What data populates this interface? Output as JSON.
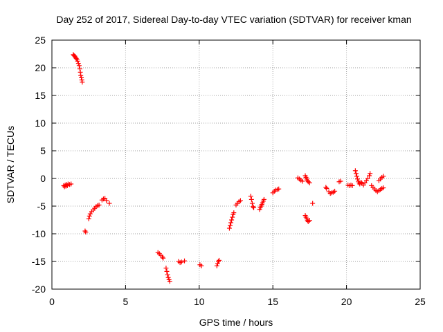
{
  "chart_data": {
    "type": "scatter",
    "title": "Day 252 of 2017, Sidereal Day-to-day VTEC variation (SDTVAR) for receiver kman",
    "xlabel": "GPS time / hours",
    "ylabel": "SDTVAR / TECUs",
    "xlim": [
      0,
      25
    ],
    "ylim": [
      -20,
      25
    ],
    "xticks": [
      0,
      5,
      10,
      15,
      20,
      25
    ],
    "yticks": [
      -20,
      -15,
      -10,
      -5,
      0,
      5,
      10,
      15,
      20,
      25
    ],
    "xtick_labels": [
      "0",
      "5",
      "10",
      "15",
      "20",
      "25"
    ],
    "ytick_labels": [
      "-20",
      "-15",
      "-10",
      "-5",
      "0",
      "5",
      "10",
      "15",
      "20",
      "25"
    ],
    "grid": true,
    "marker": "+",
    "color": "#ff0000",
    "series": [
      {
        "name": "kman",
        "points": [
          [
            0.8,
            -1.3
          ],
          [
            0.85,
            -1.5
          ],
          [
            0.9,
            -1.2
          ],
          [
            0.95,
            -1.4
          ],
          [
            1.0,
            -1.1
          ],
          [
            1.05,
            -1.3
          ],
          [
            1.1,
            -1.0
          ],
          [
            1.2,
            -1.1
          ],
          [
            1.3,
            -1.0
          ],
          [
            1.45,
            22.4
          ],
          [
            1.5,
            22.2
          ],
          [
            1.55,
            22.1
          ],
          [
            1.6,
            21.9
          ],
          [
            1.65,
            21.7
          ],
          [
            1.7,
            21.5
          ],
          [
            1.75,
            21.2
          ],
          [
            1.8,
            20.8
          ],
          [
            1.85,
            20.4
          ],
          [
            1.9,
            19.8
          ],
          [
            1.93,
            19.2
          ],
          [
            1.96,
            18.6
          ],
          [
            2.0,
            18.2
          ],
          [
            2.03,
            17.8
          ],
          [
            2.06,
            17.4
          ],
          [
            2.25,
            -9.5
          ],
          [
            2.3,
            -9.7
          ],
          [
            2.5,
            -7.3
          ],
          [
            2.55,
            -6.8
          ],
          [
            2.6,
            -6.4
          ],
          [
            2.7,
            -6.0
          ],
          [
            2.8,
            -5.7
          ],
          [
            2.9,
            -5.4
          ],
          [
            3.0,
            -5.1
          ],
          [
            3.1,
            -4.9
          ],
          [
            3.2,
            -4.8
          ],
          [
            3.4,
            -3.9
          ],
          [
            3.5,
            -3.7
          ],
          [
            3.6,
            -3.6
          ],
          [
            3.7,
            -4.0
          ],
          [
            3.9,
            -4.5
          ],
          [
            7.2,
            -13.4
          ],
          [
            7.3,
            -13.6
          ],
          [
            7.4,
            -13.9
          ],
          [
            7.5,
            -14.2
          ],
          [
            7.55,
            -14.4
          ],
          [
            7.75,
            -16.2
          ],
          [
            7.8,
            -16.8
          ],
          [
            7.85,
            -17.4
          ],
          [
            7.9,
            -17.9
          ],
          [
            7.95,
            -18.3
          ],
          [
            8.0,
            -18.6
          ],
          [
            8.6,
            -15.0
          ],
          [
            8.7,
            -15.2
          ],
          [
            8.8,
            -15.1
          ],
          [
            9.0,
            -14.9
          ],
          [
            10.05,
            -15.6
          ],
          [
            10.15,
            -15.8
          ],
          [
            11.2,
            -15.8
          ],
          [
            11.25,
            -15.4
          ],
          [
            11.3,
            -15.0
          ],
          [
            11.35,
            -14.8
          ],
          [
            12.05,
            -9.0
          ],
          [
            12.1,
            -8.5
          ],
          [
            12.15,
            -8.0
          ],
          [
            12.2,
            -7.5
          ],
          [
            12.25,
            -7.0
          ],
          [
            12.3,
            -6.5
          ],
          [
            12.35,
            -6.2
          ],
          [
            12.5,
            -4.8
          ],
          [
            12.6,
            -4.5
          ],
          [
            12.7,
            -4.2
          ],
          [
            12.8,
            -4.0
          ],
          [
            13.5,
            -3.2
          ],
          [
            13.55,
            -3.8
          ],
          [
            13.6,
            -4.5
          ],
          [
            13.65,
            -5.1
          ],
          [
            13.7,
            -5.3
          ],
          [
            14.1,
            -5.6
          ],
          [
            14.15,
            -5.3
          ],
          [
            14.2,
            -5.0
          ],
          [
            14.25,
            -4.7
          ],
          [
            14.3,
            -4.4
          ],
          [
            14.35,
            -4.1
          ],
          [
            14.4,
            -3.8
          ],
          [
            15.0,
            -2.6
          ],
          [
            15.1,
            -2.3
          ],
          [
            15.2,
            -2.1
          ],
          [
            15.3,
            -2.0
          ],
          [
            15.4,
            -1.9
          ],
          [
            16.7,
            0.1
          ],
          [
            16.8,
            -0.1
          ],
          [
            16.9,
            -0.3
          ],
          [
            17.0,
            -0.5
          ],
          [
            17.2,
            0.5
          ],
          [
            17.25,
            0.2
          ],
          [
            17.3,
            -0.1
          ],
          [
            17.35,
            -0.4
          ],
          [
            17.4,
            -0.6
          ],
          [
            17.5,
            -0.8
          ],
          [
            17.2,
            -6.7
          ],
          [
            17.25,
            -7.0
          ],
          [
            17.3,
            -7.3
          ],
          [
            17.35,
            -7.6
          ],
          [
            17.4,
            -7.8
          ],
          [
            17.5,
            -7.6
          ],
          [
            17.7,
            -4.5
          ],
          [
            18.6,
            -1.6
          ],
          [
            18.65,
            -1.8
          ],
          [
            18.8,
            -2.4
          ],
          [
            18.9,
            -2.7
          ],
          [
            19.0,
            -2.6
          ],
          [
            19.1,
            -2.5
          ],
          [
            19.2,
            -2.3
          ],
          [
            19.5,
            -0.6
          ],
          [
            19.6,
            -0.5
          ],
          [
            20.1,
            -1.2
          ],
          [
            20.2,
            -1.3
          ],
          [
            20.3,
            -1.2
          ],
          [
            20.4,
            -1.3
          ],
          [
            20.6,
            1.4
          ],
          [
            20.65,
            0.9
          ],
          [
            20.7,
            0.4
          ],
          [
            20.75,
            -0.1
          ],
          [
            20.8,
            -0.5
          ],
          [
            20.85,
            -0.8
          ],
          [
            20.9,
            -1.0
          ],
          [
            21.0,
            -0.7
          ],
          [
            21.05,
            -0.9
          ],
          [
            21.15,
            -1.2
          ],
          [
            21.25,
            -0.8
          ],
          [
            21.35,
            -0.4
          ],
          [
            21.45,
            0.0
          ],
          [
            21.55,
            0.5
          ],
          [
            21.6,
            0.9
          ],
          [
            21.7,
            -1.3
          ],
          [
            21.8,
            -1.6
          ],
          [
            21.9,
            -1.9
          ],
          [
            22.0,
            -2.2
          ],
          [
            22.1,
            -2.4
          ],
          [
            22.2,
            -2.2
          ],
          [
            22.3,
            -2.0
          ],
          [
            22.4,
            -1.8
          ],
          [
            22.5,
            -1.7
          ],
          [
            22.2,
            -0.4
          ],
          [
            22.3,
            -0.1
          ],
          [
            22.4,
            0.2
          ],
          [
            22.5,
            0.4
          ]
        ]
      }
    ]
  }
}
